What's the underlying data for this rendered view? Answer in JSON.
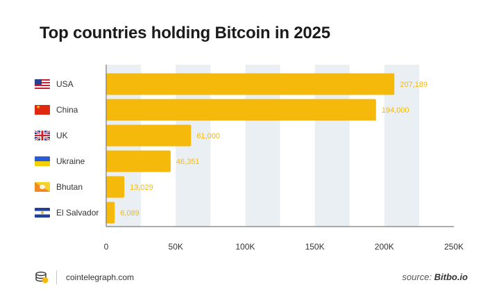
{
  "chart_data": {
    "type": "bar",
    "orientation": "horizontal",
    "title": "Top countries holding Bitcoin in 2025",
    "categories": [
      "USA",
      "China",
      "UK",
      "Ukraine",
      "Bhutan",
      "El Salvador"
    ],
    "values": [
      207189,
      194000,
      61000,
      46351,
      13029,
      6089
    ],
    "value_labels": [
      "207,189",
      "194,000",
      "61,000",
      "46,351",
      "13,029",
      "6,089"
    ],
    "xlim": [
      0,
      250000
    ],
    "xticks": [
      0,
      50000,
      100000,
      150000,
      200000,
      250000
    ],
    "xtick_labels": [
      "0",
      "50K",
      "100K",
      "150K",
      "200K",
      "250K"
    ],
    "xlabel": "",
    "ylabel": "",
    "bar_color": "#f5b90c",
    "label_color": "#f5b90c",
    "band_color": "#e9eff2"
  },
  "footer": {
    "site": "cointelegraph.com",
    "source_prefix": "source: ",
    "source_name": "Bitbo.io"
  },
  "icons": {
    "logo": "cointelegraph-logo-icon",
    "flags": [
      "usa-flag-icon",
      "china-flag-icon",
      "uk-flag-icon",
      "ukraine-flag-icon",
      "bhutan-flag-icon",
      "el-salvador-flag-icon"
    ]
  }
}
